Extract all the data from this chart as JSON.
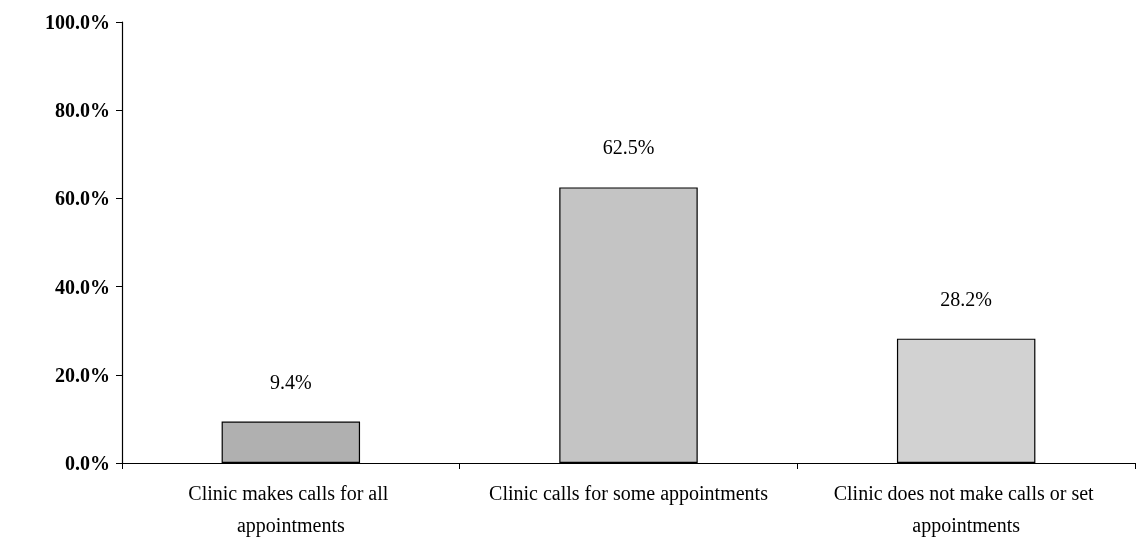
{
  "chart_data": {
    "type": "bar",
    "categories": [
      "Clinic makes calls for all appointments",
      "Clinic calls for some appointments",
      "Clinic does not make calls or set appointments"
    ],
    "values": [
      9.4,
      62.5,
      28.2
    ],
    "colors": [
      "#b0b0b0",
      "#c4c4c4",
      "#d2d2d2"
    ],
    "value_labels": [
      "9.4%",
      "62.5%",
      "28.2%"
    ],
    "ylim": [
      0,
      100
    ],
    "yticks": [
      {
        "value": 0,
        "label": "0.0%"
      },
      {
        "value": 20,
        "label": "20.0%"
      },
      {
        "value": 40,
        "label": "40.0%"
      },
      {
        "value": 60,
        "label": "60.0%"
      },
      {
        "value": 80,
        "label": "80.0%"
      },
      {
        "value": 100,
        "label": "100.0%"
      }
    ],
    "grid": false
  }
}
